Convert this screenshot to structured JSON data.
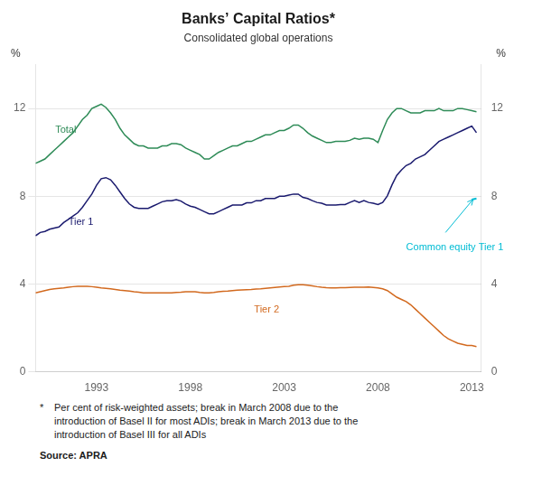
{
  "chart_data": {
    "type": "line",
    "title": "Banks’ Capital Ratios*",
    "subtitle": "Consolidated global operations",
    "ylabel": "%",
    "y2label": "%",
    "footnote_marker": "*",
    "footnote": "Per cent of risk-weighted assets; break in March 2008 due to the\nintroduction of Basel II for most ADIs; break in March 2013 due to the\nintroduction of Basel III for all ADIs",
    "source": "Source: APRA",
    "xlim": [
      1989.75,
      2013.5
    ],
    "xticks": [
      1993,
      1998,
      2003,
      2008,
      2013
    ],
    "ylim": [
      0,
      14
    ],
    "yticks": [
      0,
      4,
      8,
      12
    ],
    "y2lim": [
      0,
      14
    ],
    "y2ticks": [
      0,
      4,
      8,
      12
    ],
    "grid": "y",
    "legend": false,
    "series": [
      {
        "name": "Total",
        "color": "#2e8b57",
        "line_style": "solid",
        "annotation": {
          "x": 1990.8,
          "y": 10.9
        },
        "x": [
          1989.75,
          1990.0,
          1990.25,
          1990.5,
          1990.75,
          1991.0,
          1991.25,
          1991.5,
          1991.75,
          1992.0,
          1992.25,
          1992.5,
          1992.75,
          1993.0,
          1993.25,
          1993.5,
          1993.75,
          1994.0,
          1994.25,
          1994.5,
          1994.75,
          1995.0,
          1995.25,
          1995.5,
          1995.75,
          1996.0,
          1996.25,
          1996.5,
          1996.75,
          1997.0,
          1997.25,
          1997.5,
          1997.75,
          1998.0,
          1998.25,
          1998.5,
          1998.75,
          1999.0,
          1999.25,
          1999.5,
          1999.75,
          2000.0,
          2000.25,
          2000.5,
          2000.75,
          2001.0,
          2001.25,
          2001.5,
          2001.75,
          2002.0,
          2002.25,
          2002.5,
          2002.75,
          2003.0,
          2003.25,
          2003.5,
          2003.75,
          2004.0,
          2004.25,
          2004.5,
          2004.75,
          2005.0,
          2005.25,
          2005.5,
          2005.75,
          2006.0,
          2006.25,
          2006.5,
          2006.75,
          2007.0,
          2007.25,
          2007.5,
          2007.75,
          2008.0,
          2008.25,
          2008.5,
          2008.75,
          2009.0,
          2009.25,
          2009.5,
          2009.75,
          2010.0,
          2010.25,
          2010.5,
          2010.75,
          2011.0,
          2011.25,
          2011.5,
          2011.75,
          2012.0,
          2012.25,
          2012.5,
          2012.75,
          2013.0,
          2013.25
        ],
        "values": [
          9.5,
          9.6,
          9.7,
          9.9,
          10.1,
          10.3,
          10.5,
          10.7,
          10.9,
          11.2,
          11.5,
          11.7,
          12.0,
          12.1,
          12.2,
          12.05,
          11.8,
          11.5,
          11.1,
          10.8,
          10.6,
          10.4,
          10.3,
          10.3,
          10.2,
          10.2,
          10.2,
          10.3,
          10.3,
          10.4,
          10.4,
          10.35,
          10.2,
          10.1,
          10.0,
          9.9,
          9.7,
          9.7,
          9.85,
          10.0,
          10.1,
          10.2,
          10.3,
          10.3,
          10.4,
          10.5,
          10.5,
          10.6,
          10.7,
          10.8,
          10.8,
          10.9,
          11.0,
          11.0,
          11.1,
          11.25,
          11.25,
          11.1,
          10.9,
          10.75,
          10.65,
          10.55,
          10.45,
          10.45,
          10.5,
          10.5,
          10.5,
          10.55,
          10.65,
          10.6,
          10.65,
          10.65,
          10.6,
          10.45,
          11.0,
          11.5,
          11.8,
          12.0,
          12.0,
          11.9,
          11.8,
          11.8,
          11.8,
          11.9,
          11.9,
          11.9,
          12.0,
          11.9,
          11.9,
          11.9,
          12.0,
          12.0,
          11.95,
          11.9,
          11.85
        ]
      },
      {
        "name": "Tier 1",
        "color": "#1a1a6e",
        "line_style": "solid",
        "annotation": {
          "x": 1991.5,
          "y": 6.7
        },
        "x": [
          1989.75,
          1990.0,
          1990.25,
          1990.5,
          1990.75,
          1991.0,
          1991.25,
          1991.5,
          1991.75,
          1992.0,
          1992.25,
          1992.5,
          1992.75,
          1993.0,
          1993.25,
          1993.5,
          1993.75,
          1994.0,
          1994.25,
          1994.5,
          1994.75,
          1995.0,
          1995.25,
          1995.5,
          1995.75,
          1996.0,
          1996.25,
          1996.5,
          1996.75,
          1997.0,
          1997.25,
          1997.5,
          1997.75,
          1998.0,
          1998.25,
          1998.5,
          1998.75,
          1999.0,
          1999.25,
          1999.5,
          1999.75,
          2000.0,
          2000.25,
          2000.5,
          2000.75,
          2001.0,
          2001.25,
          2001.5,
          2001.75,
          2002.0,
          2002.25,
          2002.5,
          2002.75,
          2003.0,
          2003.25,
          2003.5,
          2003.75,
          2004.0,
          2004.25,
          2004.5,
          2004.75,
          2005.0,
          2005.25,
          2005.5,
          2005.75,
          2006.0,
          2006.25,
          2006.5,
          2006.75,
          2007.0,
          2007.25,
          2007.5,
          2007.75,
          2008.0,
          2008.25,
          2008.5,
          2008.75,
          2009.0,
          2009.25,
          2009.5,
          2009.75,
          2010.0,
          2010.25,
          2010.5,
          2010.75,
          2011.0,
          2011.25,
          2011.5,
          2011.75,
          2012.0,
          2012.25,
          2012.5,
          2012.75,
          2013.0,
          2013.25
        ],
        "values": [
          6.2,
          6.35,
          6.4,
          6.5,
          6.55,
          6.6,
          6.8,
          6.95,
          7.1,
          7.25,
          7.5,
          7.8,
          8.1,
          8.5,
          8.8,
          8.85,
          8.75,
          8.5,
          8.2,
          7.9,
          7.65,
          7.5,
          7.45,
          7.45,
          7.45,
          7.55,
          7.65,
          7.75,
          7.8,
          7.8,
          7.85,
          7.78,
          7.65,
          7.55,
          7.5,
          7.4,
          7.3,
          7.2,
          7.2,
          7.3,
          7.4,
          7.5,
          7.6,
          7.6,
          7.6,
          7.7,
          7.7,
          7.8,
          7.8,
          7.9,
          7.9,
          7.9,
          8.0,
          8.0,
          8.05,
          8.1,
          8.1,
          7.95,
          7.9,
          7.8,
          7.72,
          7.68,
          7.6,
          7.6,
          7.6,
          7.62,
          7.62,
          7.72,
          7.8,
          7.72,
          7.8,
          7.72,
          7.68,
          7.62,
          7.72,
          8.02,
          8.52,
          8.95,
          9.2,
          9.4,
          9.5,
          9.7,
          9.8,
          9.9,
          10.1,
          10.3,
          10.5,
          10.6,
          10.7,
          10.8,
          10.9,
          11.0,
          11.1,
          11.2,
          10.9
        ]
      },
      {
        "name": "Tier 2",
        "color": "#d2691e",
        "line_style": "solid",
        "annotation": {
          "x": 2001.4,
          "y": 2.7
        },
        "x": [
          1989.75,
          1990.0,
          1990.25,
          1990.5,
          1990.75,
          1991.0,
          1991.25,
          1991.5,
          1991.75,
          1992.0,
          1992.25,
          1992.5,
          1992.75,
          1993.0,
          1993.25,
          1993.5,
          1993.75,
          1994.0,
          1994.25,
          1994.5,
          1994.75,
          1995.0,
          1995.25,
          1995.5,
          1995.75,
          1996.0,
          1996.25,
          1996.5,
          1996.75,
          1997.0,
          1997.25,
          1997.5,
          1997.75,
          1998.0,
          1998.25,
          1998.5,
          1998.75,
          1999.0,
          1999.25,
          1999.5,
          1999.75,
          2000.0,
          2000.25,
          2000.5,
          2000.75,
          2001.0,
          2001.25,
          2001.5,
          2001.75,
          2002.0,
          2002.25,
          2002.5,
          2002.75,
          2003.0,
          2003.25,
          2003.5,
          2003.75,
          2004.0,
          2004.25,
          2004.5,
          2004.75,
          2005.0,
          2005.25,
          2005.5,
          2005.75,
          2006.0,
          2006.25,
          2006.5,
          2006.75,
          2007.0,
          2007.25,
          2007.5,
          2007.75,
          2008.0,
          2008.25,
          2008.5,
          2008.75,
          2009.0,
          2009.25,
          2009.5,
          2009.75,
          2010.0,
          2010.25,
          2010.5,
          2010.75,
          2011.0,
          2011.25,
          2011.5,
          2011.75,
          2012.0,
          2012.25,
          2012.5,
          2012.75,
          2013.0,
          2013.25
        ],
        "values": [
          3.6,
          3.65,
          3.7,
          3.75,
          3.78,
          3.8,
          3.82,
          3.85,
          3.88,
          3.9,
          3.9,
          3.9,
          3.88,
          3.85,
          3.82,
          3.8,
          3.78,
          3.75,
          3.72,
          3.7,
          3.68,
          3.65,
          3.63,
          3.6,
          3.6,
          3.6,
          3.6,
          3.6,
          3.6,
          3.6,
          3.62,
          3.63,
          3.65,
          3.65,
          3.65,
          3.62,
          3.6,
          3.6,
          3.62,
          3.65,
          3.67,
          3.68,
          3.7,
          3.72,
          3.73,
          3.74,
          3.75,
          3.77,
          3.78,
          3.8,
          3.82,
          3.84,
          3.86,
          3.88,
          3.9,
          3.95,
          3.97,
          3.97,
          3.95,
          3.92,
          3.88,
          3.85,
          3.83,
          3.82,
          3.82,
          3.83,
          3.83,
          3.84,
          3.85,
          3.85,
          3.85,
          3.86,
          3.84,
          3.82,
          3.78,
          3.7,
          3.55,
          3.4,
          3.3,
          3.2,
          3.05,
          2.85,
          2.65,
          2.45,
          2.25,
          2.05,
          1.85,
          1.65,
          1.5,
          1.4,
          1.3,
          1.25,
          1.2,
          1.2,
          1.15
        ]
      },
      {
        "name": "Common equity Tier 1",
        "color": "#00bcd4",
        "line_style": "dashed",
        "annotation": {
          "x": 2009.5,
          "y": 5.55,
          "arrow": {
            "x": 2011.6,
            "y": 6.35,
            "x2": 2013.07,
            "y2": 7.86
          }
        },
        "x": [
          2013.0,
          2013.25
        ],
        "values": [
          7.85,
          7.9
        ]
      }
    ]
  }
}
